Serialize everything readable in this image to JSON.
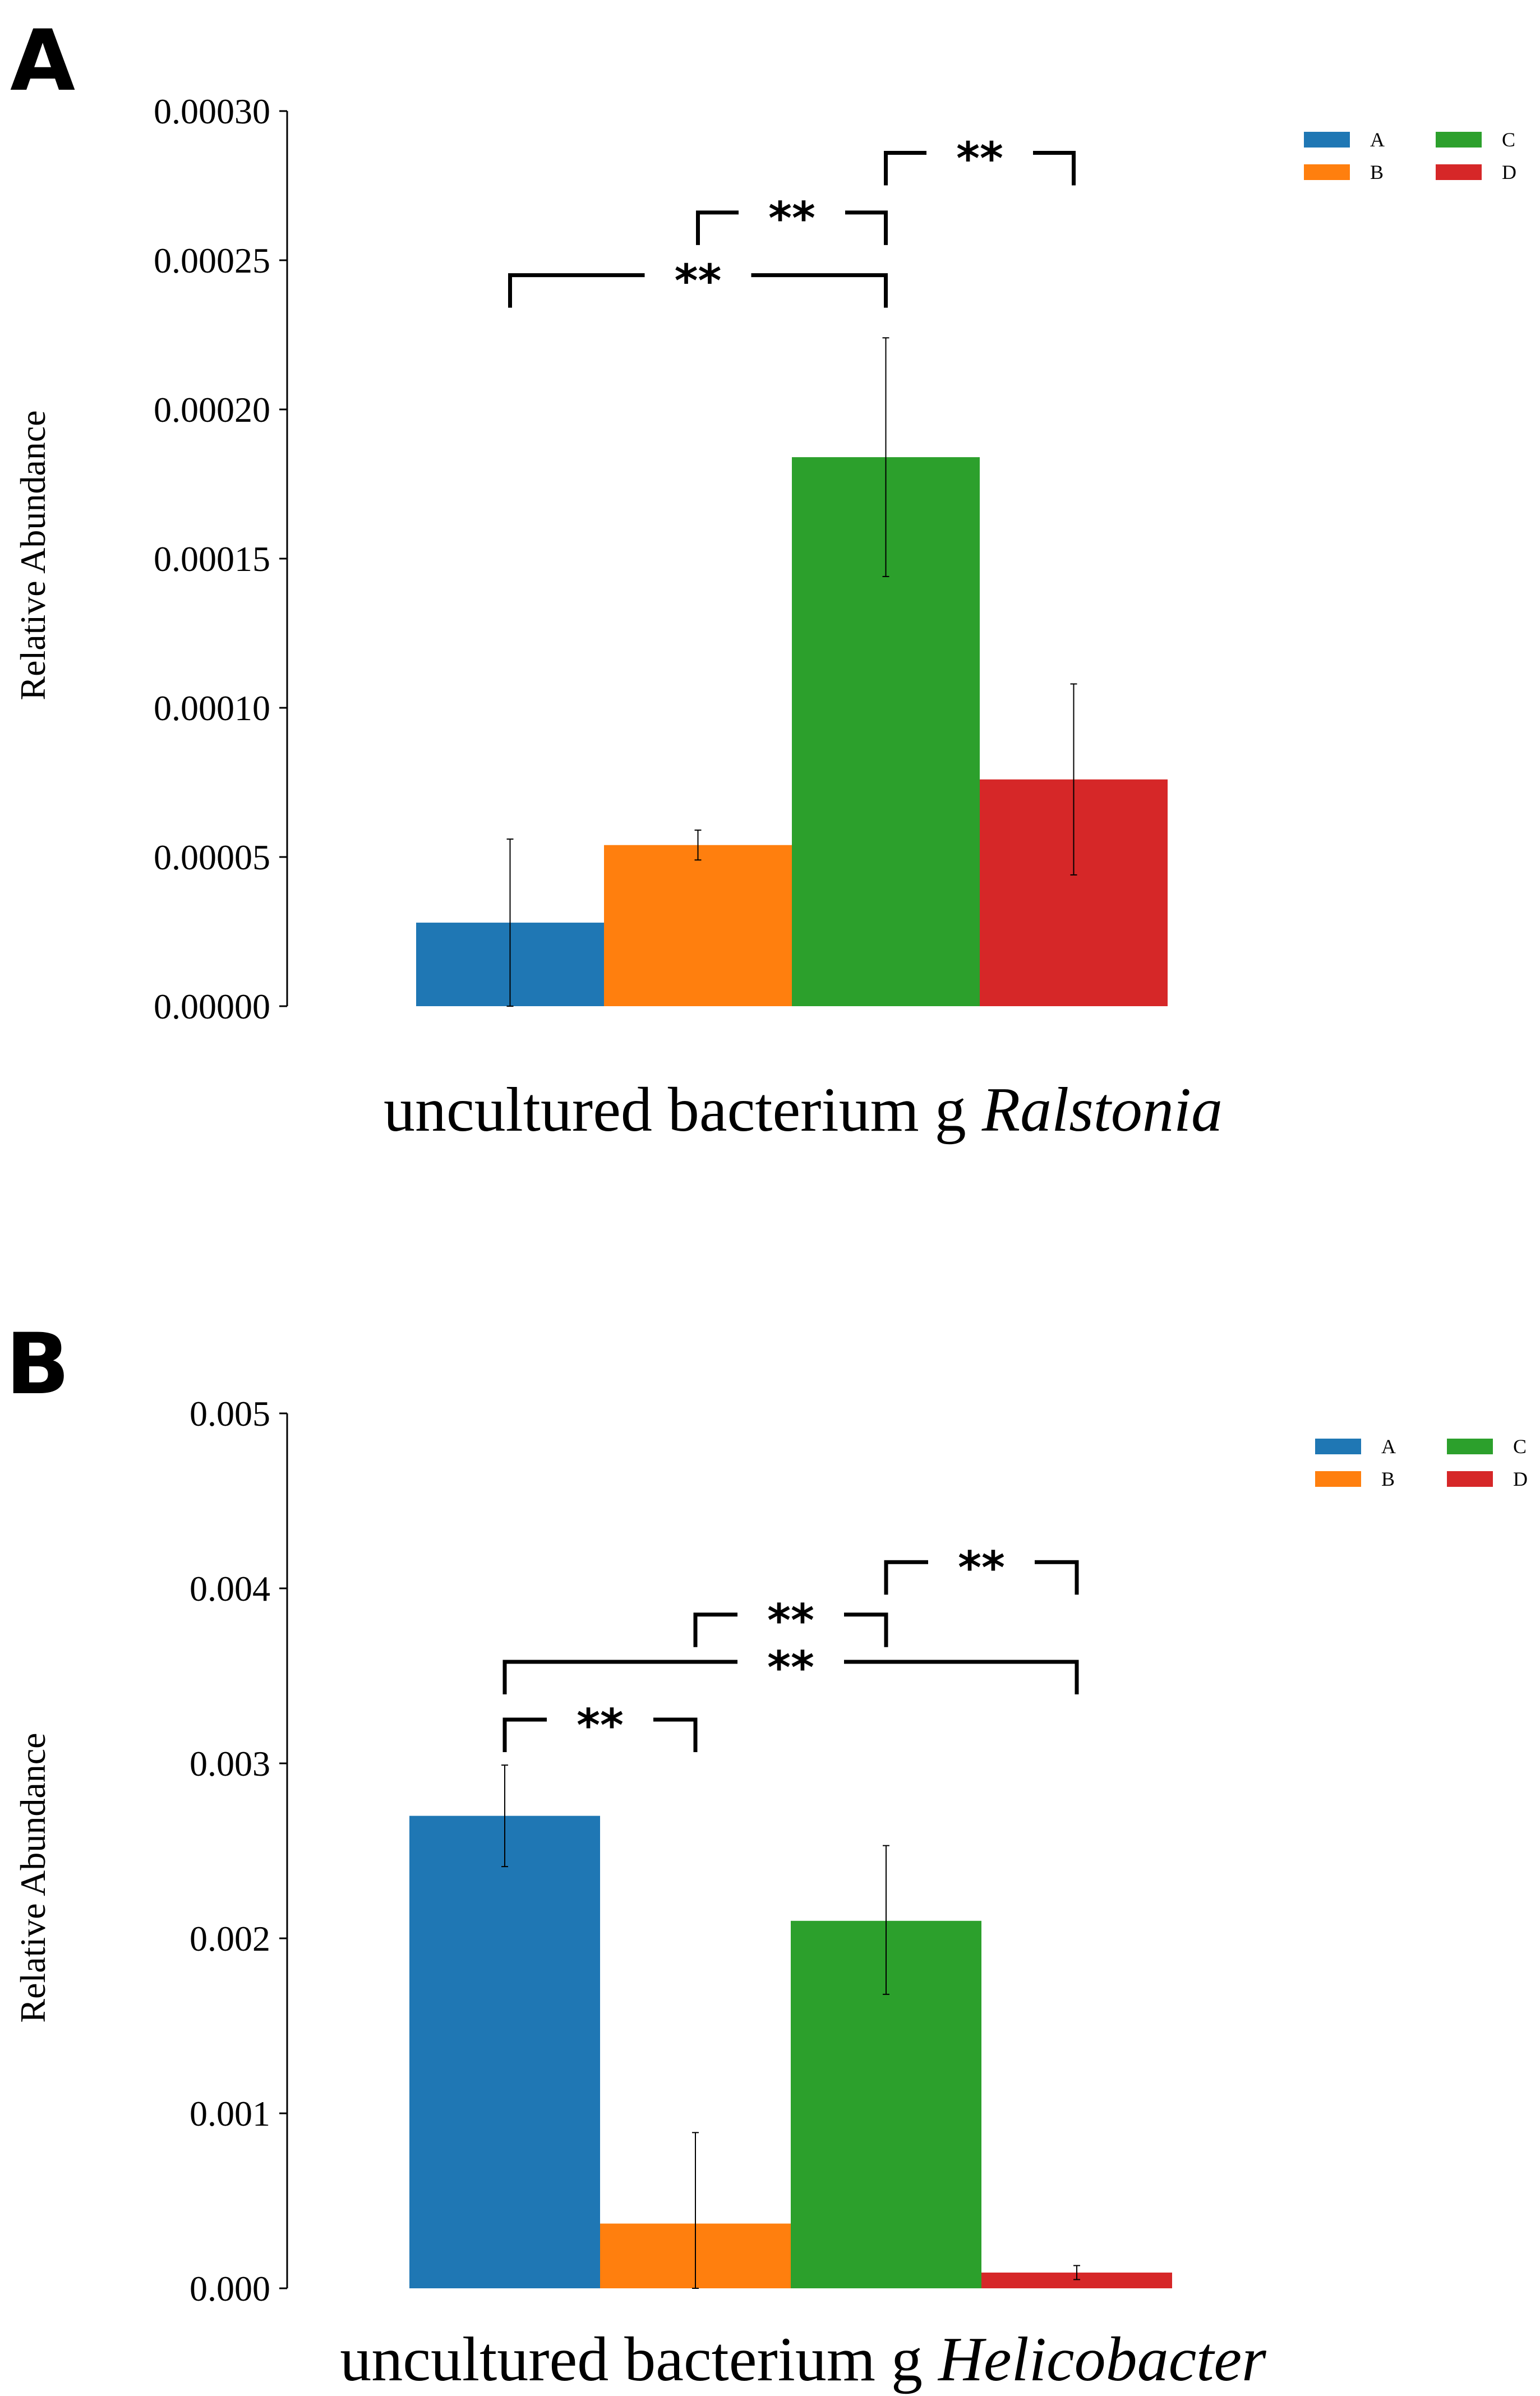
{
  "chart_data": [
    {
      "panel": "A",
      "type": "bar",
      "title": "",
      "xlabel_plain": "uncultured bacterium g ",
      "xlabel_italic": "Ralstonia",
      "ylabel": "Relative Abundance",
      "ylim": [
        0,
        0.0003
      ],
      "ticks": [
        "0.00000",
        "0.00005",
        "0.00010",
        "0.00015",
        "0.00020",
        "0.00025",
        "0.00030"
      ],
      "tick_values": [
        0,
        5e-05,
        0.0001,
        0.00015,
        0.0002,
        0.00025,
        0.0003
      ],
      "categories": [
        "A",
        "B",
        "C",
        "D"
      ],
      "values": [
        2.8e-05,
        5.4e-05,
        0.000184,
        7.6e-05
      ],
      "err_low": [
        0.0,
        4.9e-05,
        0.000144,
        4.4e-05
      ],
      "err_high": [
        5.6e-05,
        5.9e-05,
        0.000224,
        0.000108
      ],
      "colors": [
        "#1f77b4",
        "#ff7f0e",
        "#2ca02c",
        "#d62728"
      ],
      "legend": [
        "A",
        "B",
        "C",
        "D"
      ],
      "legend_position": "top-right",
      "significance": [
        {
          "from": 0,
          "to": 2,
          "label": "**",
          "level": 0.000245
        },
        {
          "from": 1,
          "to": 2,
          "label": "**",
          "level": 0.000266
        },
        {
          "from": 2,
          "to": 3,
          "label": "**",
          "level": 0.000286
        }
      ]
    },
    {
      "panel": "B",
      "type": "bar",
      "title": "",
      "xlabel_plain": "uncultured bacterium g ",
      "xlabel_italic": "Helicobacter",
      "ylabel": "Relative Abundance",
      "ylim": [
        0,
        0.005
      ],
      "ticks": [
        "0.000",
        "0.001",
        "0.002",
        "0.003",
        "0.004",
        "0.005"
      ],
      "tick_values": [
        0,
        0.001,
        0.002,
        0.003,
        0.004,
        0.005
      ],
      "categories": [
        "A",
        "B",
        "C",
        "D"
      ],
      "values": [
        0.0027,
        0.00037,
        0.0021,
        9e-05
      ],
      "err_low": [
        0.00241,
        0.0,
        0.00168,
        5e-05
      ],
      "err_high": [
        0.00299,
        0.00089,
        0.00253,
        0.00013
      ],
      "colors": [
        "#1f77b4",
        "#ff7f0e",
        "#2ca02c",
        "#d62728"
      ],
      "legend": [
        "A",
        "B",
        "C",
        "D"
      ],
      "legend_position": "top-right",
      "significance": [
        {
          "from": 0,
          "to": 1,
          "label": "**",
          "level": 0.00325
        },
        {
          "from": 0,
          "to": 3,
          "label": "**",
          "level": 0.00358
        },
        {
          "from": 1,
          "to": 2,
          "label": "**",
          "level": 0.00385
        },
        {
          "from": 2,
          "to": 3,
          "label": "**",
          "level": 0.00415
        }
      ]
    }
  ]
}
